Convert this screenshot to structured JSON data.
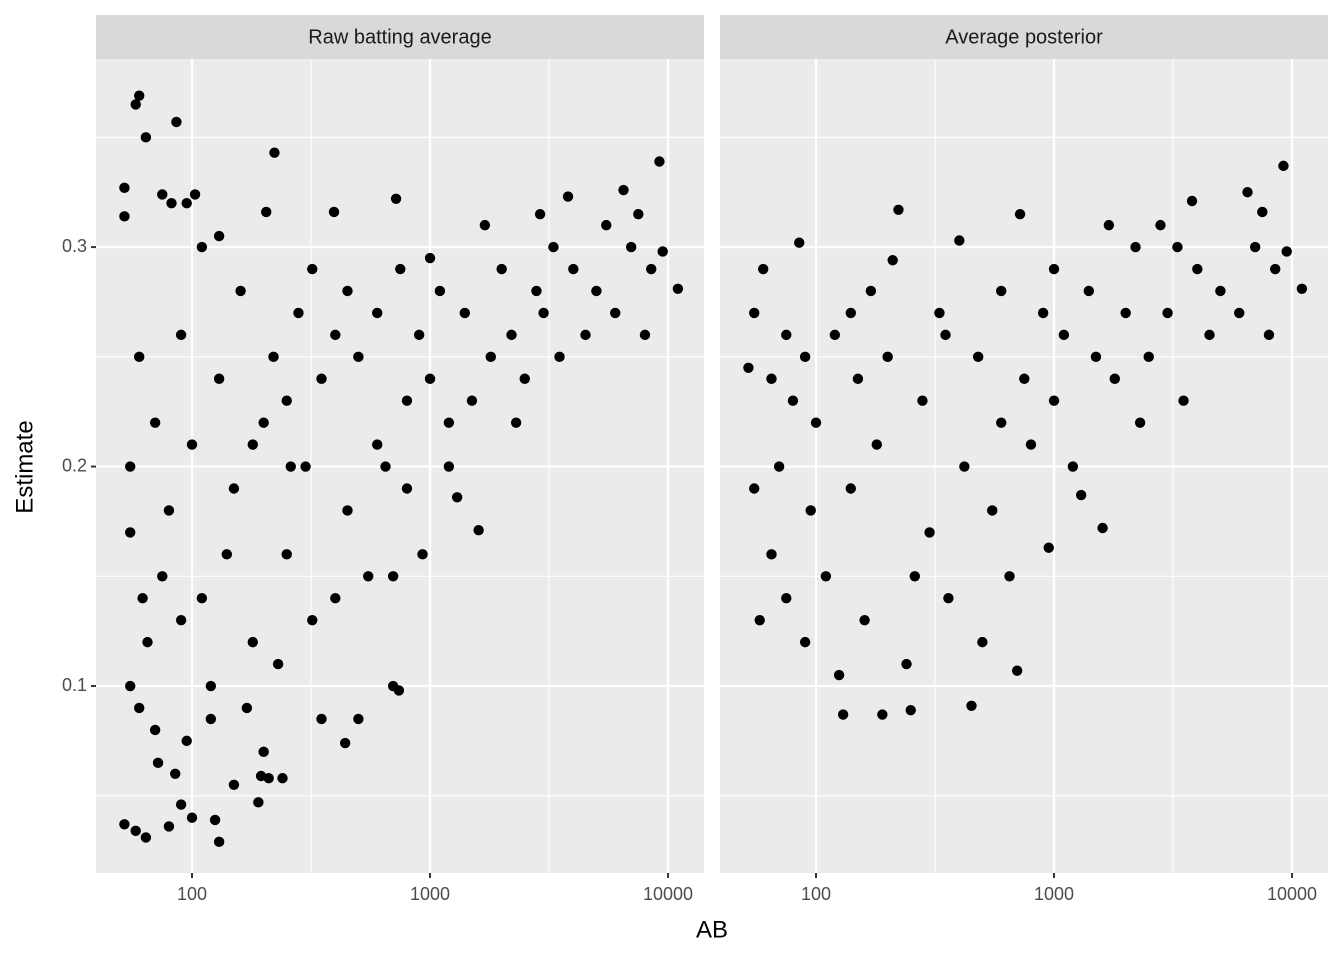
{
  "xlabel": "AB",
  "ylabel": "Estimate",
  "chart_data": [
    {
      "type": "scatter",
      "title": "Raw batting average",
      "xscale": "log",
      "color": "#000000",
      "grid": true,
      "xlim": [
        39.5,
        14160
      ],
      "ylim": [
        0.0148,
        0.3857
      ],
      "xticks": [
        100,
        1000,
        10000
      ],
      "minor_xticks": [
        316.2,
        3162
      ],
      "yticks": [
        0.1,
        0.2,
        0.3
      ],
      "minor_yticks": [
        0.05,
        0.15,
        0.25,
        0.35
      ],
      "x": [
        52,
        52,
        58,
        60,
        64,
        86,
        75,
        82,
        95,
        103,
        222,
        205,
        395,
        720,
        3800,
        6500,
        9200,
        11000,
        9500,
        52,
        58,
        64,
        80,
        90,
        100,
        125,
        130,
        190,
        195,
        210,
        240,
        440,
        200,
        55,
        60,
        70,
        65,
        75,
        55,
        60,
        70,
        80,
        90,
        100,
        110,
        120,
        130,
        150,
        160,
        180,
        200,
        220,
        250,
        280,
        300,
        320,
        350,
        400,
        450,
        500,
        550,
        600,
        650,
        700,
        750,
        800,
        900,
        930,
        1000,
        1100,
        1200,
        1300,
        1400,
        1600,
        1800,
        2000,
        2200,
        2500,
        2800,
        3000,
        3500,
        4000,
        4500,
        5000,
        6000,
        7000,
        8000,
        8500,
        3300,
        1500,
        600,
        350,
        500,
        740,
        90,
        140,
        170,
        230,
        260,
        110,
        130,
        55,
        62,
        85,
        72,
        95,
        150,
        120,
        400,
        700,
        250,
        180,
        450,
        1000,
        1700,
        2900,
        5500,
        7500,
        2300,
        1200,
        800,
        320
      ],
      "values": [
        0.314,
        0.327,
        0.365,
        0.369,
        0.35,
        0.357,
        0.324,
        0.32,
        0.32,
        0.324,
        0.343,
        0.316,
        0.316,
        0.322,
        0.323,
        0.326,
        0.339,
        0.281,
        0.298,
        0.037,
        0.034,
        0.031,
        0.036,
        0.046,
        0.04,
        0.039,
        0.029,
        0.047,
        0.059,
        0.058,
        0.058,
        0.074,
        0.07,
        0.1,
        0.09,
        0.08,
        0.12,
        0.15,
        0.2,
        0.25,
        0.22,
        0.18,
        0.26,
        0.21,
        0.14,
        0.1,
        0.24,
        0.19,
        0.28,
        0.12,
        0.22,
        0.25,
        0.16,
        0.27,
        0.2,
        0.13,
        0.24,
        0.26,
        0.18,
        0.25,
        0.15,
        0.27,
        0.2,
        0.1,
        0.29,
        0.23,
        0.26,
        0.16,
        0.24,
        0.28,
        0.2,
        0.186,
        0.27,
        0.171,
        0.25,
        0.29,
        0.26,
        0.24,
        0.28,
        0.27,
        0.25,
        0.29,
        0.26,
        0.28,
        0.27,
        0.3,
        0.26,
        0.29,
        0.3,
        0.23,
        0.21,
        0.085,
        0.085,
        0.098,
        0.13,
        0.16,
        0.09,
        0.11,
        0.2,
        0.3,
        0.305,
        0.17,
        0.14,
        0.06,
        0.065,
        0.075,
        0.055,
        0.085,
        0.14,
        0.15,
        0.23,
        0.21,
        0.28,
        0.295,
        0.31,
        0.315,
        0.31,
        0.315,
        0.22,
        0.22,
        0.19,
        0.29
      ]
    },
    {
      "type": "scatter",
      "title": "Average posterior",
      "xscale": "log",
      "color": "#000000",
      "grid": true,
      "xlim": [
        39.5,
        14160
      ],
      "ylim": [
        0.0148,
        0.3857
      ],
      "xticks": [
        100,
        1000,
        10000
      ],
      "minor_xticks": [
        316.2,
        3162
      ],
      "yticks": [
        0.1,
        0.2,
        0.3
      ],
      "minor_yticks": [
        0.05,
        0.15,
        0.25,
        0.35
      ],
      "x": [
        52,
        55,
        58,
        60,
        65,
        70,
        75,
        80,
        85,
        90,
        95,
        100,
        110,
        120,
        125,
        130,
        140,
        150,
        160,
        180,
        190,
        200,
        222,
        210,
        240,
        250,
        280,
        300,
        330,
        360,
        400,
        420,
        450,
        480,
        500,
        550,
        600,
        650,
        700,
        720,
        750,
        800,
        900,
        950,
        1000,
        1100,
        1200,
        1300,
        1400,
        1600,
        1800,
        2000,
        2200,
        2500,
        2800,
        3000,
        3500,
        3800,
        4000,
        4500,
        5000,
        6000,
        6500,
        7000,
        7500,
        8000,
        8500,
        9200,
        9500,
        11000,
        3300,
        1500,
        600,
        350,
        65,
        55,
        75,
        90,
        140,
        170,
        260,
        1000,
        2300,
        1700
      ],
      "values": [
        0.245,
        0.27,
        0.13,
        0.29,
        0.16,
        0.2,
        0.14,
        0.23,
        0.302,
        0.12,
        0.18,
        0.22,
        0.15,
        0.26,
        0.105,
        0.087,
        0.19,
        0.24,
        0.13,
        0.21,
        0.087,
        0.25,
        0.317,
        0.294,
        0.11,
        0.089,
        0.23,
        0.17,
        0.27,
        0.14,
        0.303,
        0.2,
        0.091,
        0.25,
        0.12,
        0.18,
        0.28,
        0.15,
        0.107,
        0.315,
        0.24,
        0.21,
        0.27,
        0.163,
        0.23,
        0.26,
        0.2,
        0.187,
        0.28,
        0.172,
        0.24,
        0.27,
        0.3,
        0.25,
        0.31,
        0.27,
        0.23,
        0.321,
        0.29,
        0.26,
        0.28,
        0.27,
        0.325,
        0.3,
        0.316,
        0.26,
        0.29,
        0.337,
        0.298,
        0.281,
        0.3,
        0.25,
        0.22,
        0.26,
        0.24,
        0.19,
        0.26,
        0.25,
        0.27,
        0.28,
        0.15,
        0.29,
        0.22,
        0.31
      ]
    }
  ]
}
